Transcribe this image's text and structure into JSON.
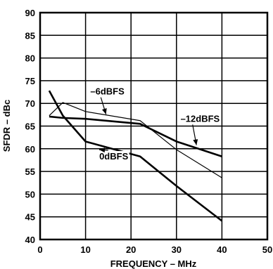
{
  "chart_data": {
    "type": "line",
    "title": "",
    "xlabel": "FREQUENCY – MHz",
    "ylabel": "SFDR – dBc",
    "xlim": [
      0,
      50
    ],
    "ylim": [
      40,
      90
    ],
    "x_ticks": [
      0,
      10,
      20,
      30,
      40,
      50
    ],
    "y_ticks": [
      40,
      45,
      50,
      55,
      60,
      65,
      70,
      75,
      80,
      85,
      90
    ],
    "grid": true,
    "series": [
      {
        "name": "0dBFS",
        "line_weight": "bold",
        "x": [
          2,
          5,
          10,
          22,
          30,
          40
        ],
        "y": [
          72.8,
          67.3,
          61.6,
          58.3,
          51.8,
          44.1
        ],
        "label_at": {
          "x": 16.2,
          "y": 57.8
        },
        "pointer_to": {
          "x": 13,
          "y": 59.8
        }
      },
      {
        "name": "–6dBFS",
        "line_weight": "thin",
        "x": [
          2,
          5,
          10,
          22,
          30,
          40
        ],
        "y": [
          67.3,
          70.2,
          68.2,
          66.2,
          59.8,
          53.6
        ],
        "label_at": {
          "x": 14.8,
          "y": 72.1
        },
        "pointer_to": {
          "x": 14.5,
          "y": 67.6
        }
      },
      {
        "name": "–12dBFS",
        "line_weight": "bold",
        "x": [
          2,
          5,
          10,
          22,
          30,
          40
        ],
        "y": [
          67.1,
          66.8,
          66.6,
          65.5,
          61.6,
          58.3
        ],
        "label_at": {
          "x": 35.2,
          "y": 66.1
        },
        "pointer_to": {
          "x": 34.4,
          "y": 60.8
        }
      }
    ]
  }
}
